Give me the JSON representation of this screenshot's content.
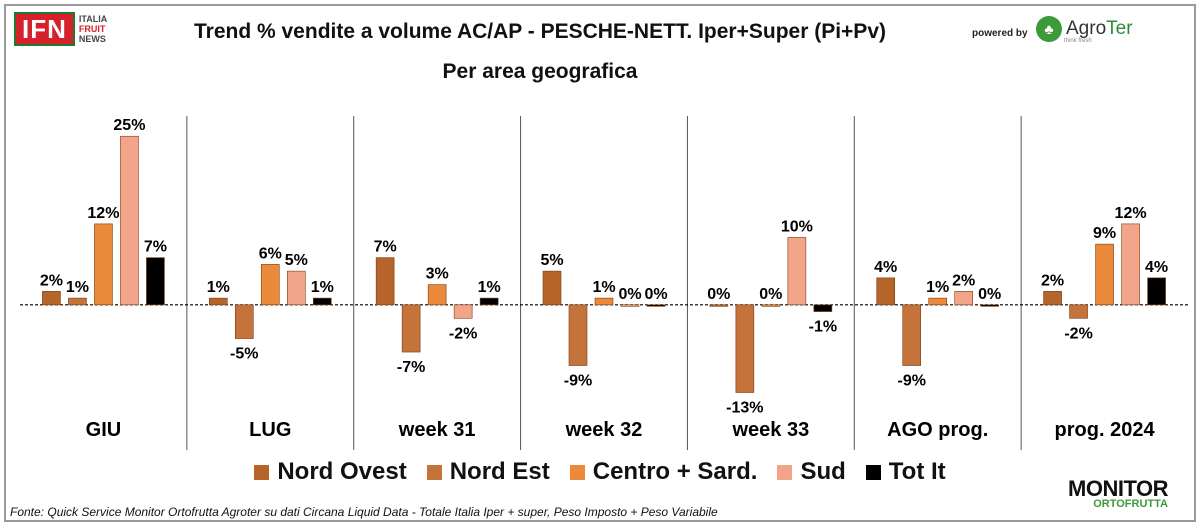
{
  "header": {
    "logo_left": {
      "main": "IFN",
      "line1": "ITALIA",
      "line2": "FRUIT",
      "line3": "NEWS"
    },
    "powered_by": "powered by",
    "logo_right": {
      "brand_a": "Agro",
      "brand_b": "Ter",
      "tagline": "think fresh"
    }
  },
  "footer": {
    "source": "Fonte: Quick Service Monitor Ortofrutta Agroter su dati Circana Liquid Data - Totale Italia Iper + super, Peso Imposto + Peso Variabile",
    "monitor_a": "MONITOR",
    "monitor_b": "ORTOFRUTTA"
  },
  "chart_data": {
    "type": "bar",
    "title": "Trend % vendite a volume AC/AP - PESCHE-NETT.  Iper+Super (Pi+Pv)",
    "subtitle": "Per area geografica",
    "categories": [
      "GIU",
      "LUG",
      "week 31",
      "week 32",
      "week 33",
      "AGO prog.",
      "prog. 2024"
    ],
    "ylim": [
      -15,
      28
    ],
    "value_suffix": "%",
    "grid": false,
    "legend_position": "bottom",
    "series": [
      {
        "name": "Nord Ovest",
        "color": "#b5652a",
        "values": [
          2,
          1,
          7,
          5,
          0,
          4,
          2
        ]
      },
      {
        "name": "Nord Est",
        "color": "#c4733a",
        "values": [
          1,
          -5,
          -7,
          -9,
          -13,
          -9,
          -2
        ]
      },
      {
        "name": "Centro + Sard.",
        "color": "#ec8a3c",
        "values": [
          12,
          6,
          3,
          1,
          0,
          1,
          9
        ]
      },
      {
        "name": "Sud",
        "color": "#f3a58a",
        "values": [
          25,
          5,
          -2,
          0,
          10,
          2,
          12
        ]
      },
      {
        "name": "Tot It",
        "color": "#000000",
        "values": [
          7,
          1,
          1,
          0,
          -1,
          0,
          4
        ]
      }
    ]
  }
}
